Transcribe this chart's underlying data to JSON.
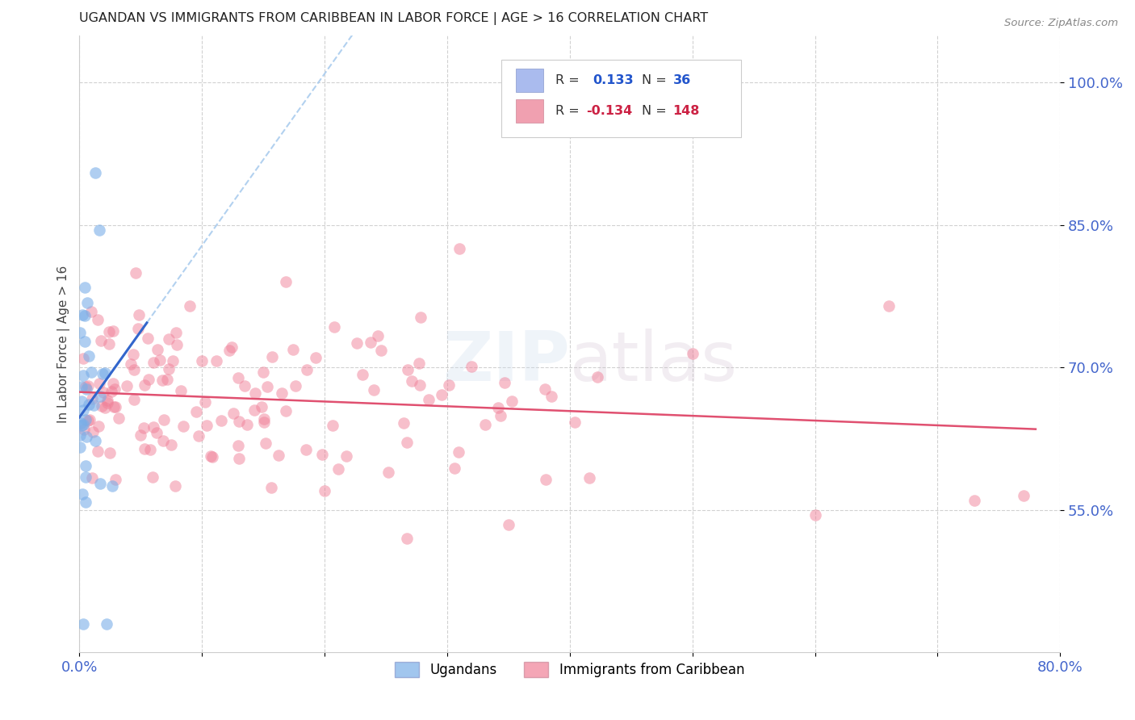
{
  "title": "UGANDAN VS IMMIGRANTS FROM CARIBBEAN IN LABOR FORCE | AGE > 16 CORRELATION CHART",
  "source": "Source: ZipAtlas.com",
  "ylabel": "In Labor Force | Age > 16",
  "x_tick_labels": [
    "0.0%",
    "",
    "",
    "",
    "",
    "",
    "",
    "",
    "80.0%"
  ],
  "y_tick_labels_right": [
    "55.0%",
    "70.0%",
    "85.0%",
    "100.0%"
  ],
  "xlim": [
    0.0,
    0.8
  ],
  "ylim": [
    0.4,
    1.05
  ],
  "ugandan_R": 0.133,
  "ugandan_N": 36,
  "caribbean_R": -0.134,
  "caribbean_N": 148,
  "blue_color": "#7aaee8",
  "pink_color": "#f08098",
  "background_color": "#ffffff",
  "grid_color": "#cccccc",
  "axis_label_color": "#4466cc",
  "title_color": "#222222",
  "watermark": "ZIPatlas"
}
